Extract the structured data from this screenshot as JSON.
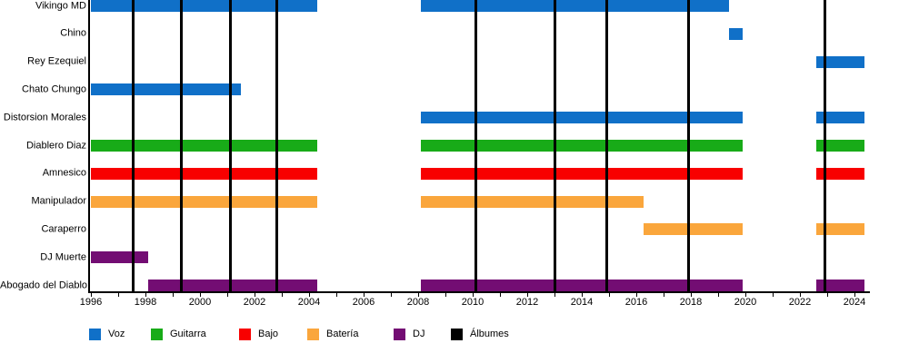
{
  "chart_data": {
    "type": "timeline",
    "title": "",
    "x_axis": {
      "start_year": 1996,
      "end_year": 2024.5,
      "tick_step_years": 1,
      "label_step_years": 2,
      "tick_labels": [
        "1996",
        "1998",
        "2000",
        "2002",
        "2004",
        "2006",
        "2008",
        "2010",
        "2012",
        "2014",
        "2016",
        "2018",
        "2020",
        "2022",
        "2024"
      ]
    },
    "members": [
      {
        "name": "Vikingo MD",
        "role": "Voz",
        "periods": [
          [
            1996.0,
            2004.3
          ],
          [
            2008.1,
            2019.4
          ]
        ]
      },
      {
        "name": "Chino",
        "role": "Voz",
        "periods": [
          [
            2019.4,
            2019.9
          ]
        ]
      },
      {
        "name": "Rey Ezequiel",
        "role": "Voz",
        "periods": [
          [
            2022.6,
            2024.35
          ]
        ]
      },
      {
        "name": "Chato Chungo",
        "role": "Voz",
        "periods": [
          [
            1996.0,
            2001.5
          ]
        ]
      },
      {
        "name": "Distorsion Morales",
        "role": "Voz",
        "periods": [
          [
            2008.1,
            2019.9
          ],
          [
            2022.6,
            2024.35
          ]
        ]
      },
      {
        "name": "Diablero Diaz",
        "role": "Guitarra",
        "periods": [
          [
            1996.0,
            2004.3
          ],
          [
            2008.1,
            2019.9
          ],
          [
            2022.6,
            2024.35
          ]
        ]
      },
      {
        "name": "Amnesico",
        "role": "Bajo",
        "periods": [
          [
            1996.0,
            2004.3
          ],
          [
            2008.1,
            2019.9
          ],
          [
            2022.6,
            2024.35
          ]
        ]
      },
      {
        "name": "Manipulador",
        "role": "Batería",
        "periods": [
          [
            1996.0,
            2004.3
          ],
          [
            2008.1,
            2016.25
          ]
        ]
      },
      {
        "name": "Caraperro",
        "role": "Batería",
        "periods": [
          [
            2016.25,
            2019.9
          ],
          [
            2022.6,
            2024.35
          ]
        ]
      },
      {
        "name": "DJ Muerte",
        "role": "DJ",
        "periods": [
          [
            1996.0,
            1998.1
          ]
        ]
      },
      {
        "name": "Abogado del Diablo",
        "role": "DJ",
        "periods": [
          [
            1998.1,
            2004.3
          ],
          [
            2008.1,
            2019.9
          ],
          [
            2022.6,
            2024.35
          ]
        ]
      }
    ],
    "album_release_years": [
      1997.55,
      1999.3,
      2001.1,
      2002.8,
      2010.1,
      2013.0,
      2014.9,
      2017.9,
      2022.9
    ],
    "legend": [
      {
        "label": "Voz",
        "color": "#1070C8"
      },
      {
        "label": "Guitarra",
        "color": "#18AB18"
      },
      {
        "label": "Bajo",
        "color": "#F80000"
      },
      {
        "label": "Batería",
        "color": "#FAA63C"
      },
      {
        "label": "DJ",
        "color": "#730D73"
      },
      {
        "label": "Álbumes",
        "color": "#000000"
      }
    ],
    "grid": false,
    "legend_position": "bottom"
  }
}
